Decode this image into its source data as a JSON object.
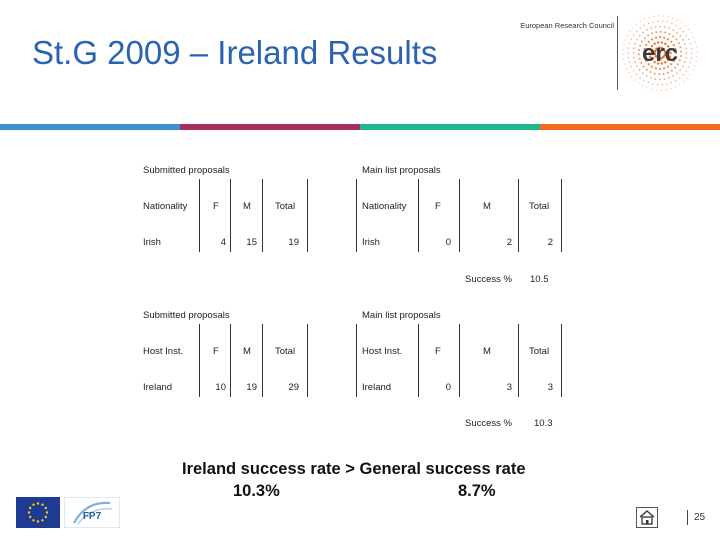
{
  "header": {
    "title": "St.G 2009 – Ireland Results",
    "org": "European Research Council",
    "logo_text": "erc"
  },
  "bands": [
    "#3b8fd4",
    "#a3305f",
    "#1fb58e",
    "#f26b1d"
  ],
  "table1": {
    "left_caption": "Submitted proposals",
    "right_caption": "Main list proposals",
    "left_headers": [
      "Nationality",
      "F",
      "M",
      "Total"
    ],
    "left_row": [
      "Irish",
      "4",
      "15",
      "19"
    ],
    "right_headers": [
      "Nationality",
      "F",
      "M",
      "Total"
    ],
    "right_row": [
      "Irish",
      "0",
      "2",
      "2"
    ],
    "success_label": "Success %",
    "success_value": "10.5"
  },
  "table2": {
    "left_caption": "Submitted proposals",
    "right_caption": "Main list proposals",
    "left_headers": [
      "Host Inst.",
      "F",
      "M",
      "Total"
    ],
    "left_row": [
      "Ireland",
      "10",
      "19",
      "29"
    ],
    "right_headers": [
      "Host Inst.",
      "F",
      "M",
      "Total"
    ],
    "right_row": [
      "Ireland",
      "0",
      "3",
      "3"
    ],
    "success_label": "Success %",
    "success_value": "10.3"
  },
  "conclusion": {
    "line1": "Ireland success rate > General success rate",
    "value1": "10.3%",
    "value2": "8.7%"
  },
  "footer": {
    "fp7_label": "FP7",
    "page_number": "25"
  }
}
